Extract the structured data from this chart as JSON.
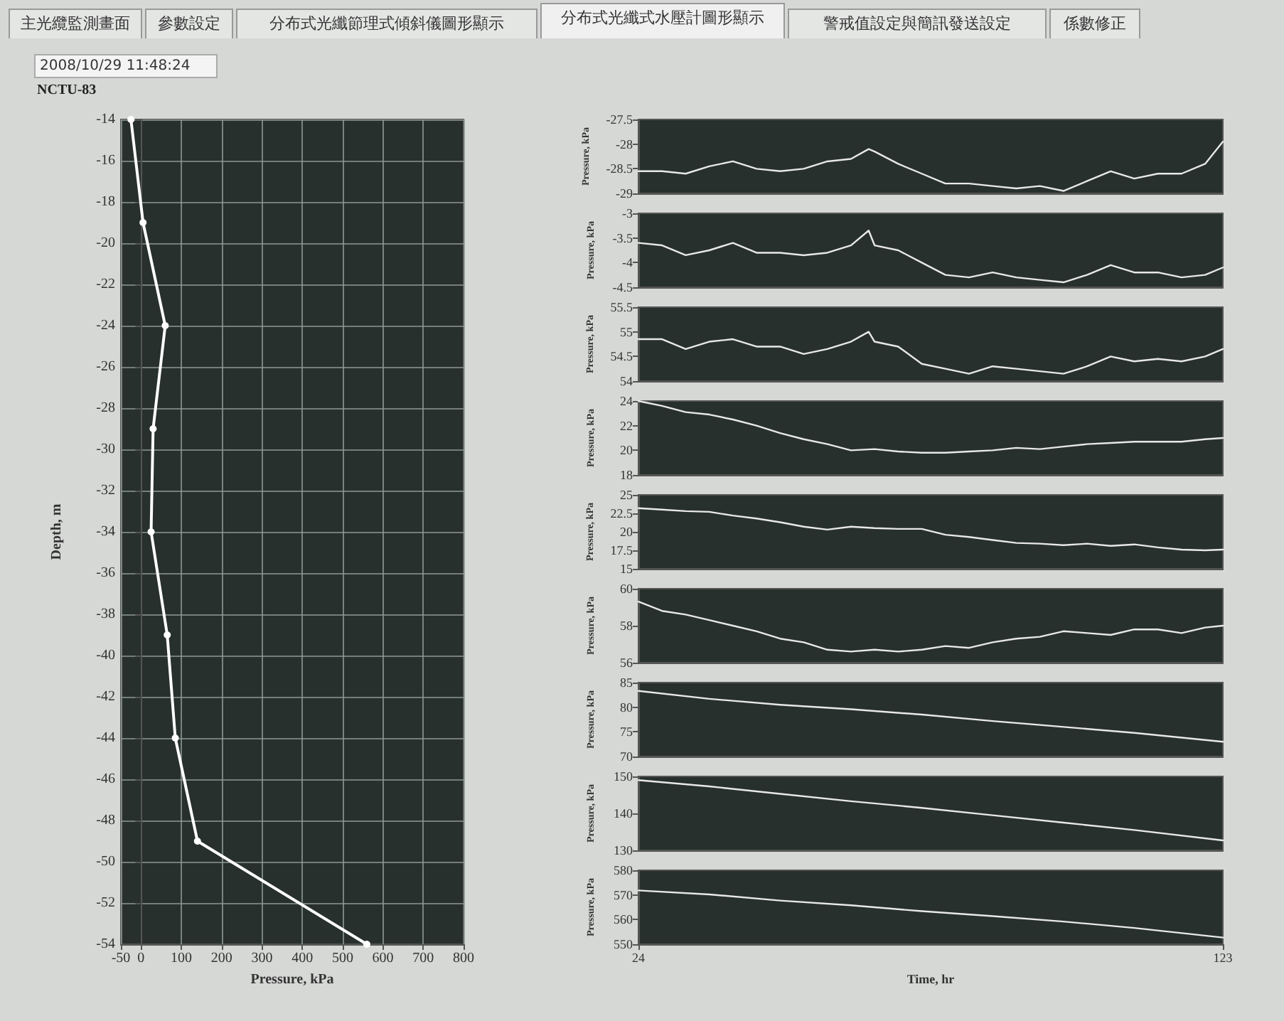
{
  "chart_data": [
    {
      "type": "line",
      "title": "NCTU-83",
      "annotations": [
        "主光纜監測畫面",
        "參數設定",
        "分布式光纖節理式傾斜儀圖形顯示",
        "分布式光纖式水壓計圖形顯示",
        "警戒值設定與簡訊發送設定",
        "係數修正",
        "2008/10/29 11:48:24"
      ],
      "xlabel": "Pressure, kPa",
      "ylabel": "Depth, m",
      "x": [
        -25,
        5,
        60,
        30,
        25,
        65,
        85,
        140,
        560
      ],
      "series": [
        {
          "color": "#ffffff",
          "values": [
            -14,
            -19,
            -24,
            -29,
            -34,
            -39,
            -44,
            -49,
            -54
          ]
        }
      ],
      "xlim": [
        -50,
        800
      ],
      "xticks": [
        -50,
        0,
        100,
        200,
        300,
        400,
        500,
        600,
        700,
        800
      ],
      "ylim": [
        -54,
        -14
      ],
      "yticks": [
        -54,
        -52,
        -50,
        -48,
        -46,
        -44,
        -42,
        -40,
        -38,
        -36,
        -34,
        -32,
        -30,
        -28,
        -26,
        -24,
        -22,
        -20,
        -18,
        -16,
        -14
      ],
      "grid": true,
      "marker": "circle"
    },
    {
      "type": "line",
      "ylabel": "Pressure, kPa",
      "x": [
        24,
        28,
        32,
        36,
        40,
        44,
        48,
        52,
        56,
        60,
        63,
        64,
        68,
        72,
        76,
        80,
        84,
        88,
        92,
        96,
        100,
        104,
        108,
        112,
        116,
        120,
        123
      ],
      "series": [
        {
          "color": "#e8e8e8",
          "values": [
            -28.55,
            -28.55,
            -28.6,
            -28.45,
            -28.35,
            -28.5,
            -28.55,
            -28.5,
            -28.35,
            -28.3,
            -28.1,
            -28.15,
            -28.4,
            -28.6,
            -28.8,
            -28.8,
            -28.85,
            -28.9,
            -28.85,
            -28.95,
            -28.75,
            -28.55,
            -28.7,
            -28.6,
            -28.6,
            -28.4,
            -27.95
          ]
        }
      ],
      "xlim": [
        24,
        123
      ],
      "ylim": [
        -29,
        -27.5
      ],
      "yticks": [
        -29,
        -28.5,
        -28,
        -27.5
      ],
      "tick_labels": "y"
    },
    {
      "type": "line",
      "ylabel": "Pressure, kPa",
      "x": [
        24,
        28,
        32,
        36,
        40,
        44,
        48,
        52,
        56,
        60,
        63,
        64,
        68,
        72,
        76,
        80,
        84,
        88,
        92,
        96,
        100,
        104,
        108,
        112,
        116,
        120,
        123
      ],
      "series": [
        {
          "color": "#e8e8e8",
          "values": [
            -3.6,
            -3.65,
            -3.85,
            -3.75,
            -3.6,
            -3.8,
            -3.8,
            -3.85,
            -3.8,
            -3.65,
            -3.35,
            -3.65,
            -3.75,
            -4.0,
            -4.25,
            -4.3,
            -4.2,
            -4.3,
            -4.35,
            -4.4,
            -4.25,
            -4.05,
            -4.2,
            -4.2,
            -4.3,
            -4.25,
            -4.1
          ]
        }
      ],
      "xlim": [
        24,
        123
      ],
      "ylim": [
        -4.5,
        -3
      ],
      "yticks": [
        -4.5,
        -4,
        -3.5,
        -3
      ],
      "tick_labels": "y"
    },
    {
      "type": "line",
      "ylabel": "Pressure, kPa",
      "x": [
        24,
        28,
        32,
        36,
        40,
        44,
        48,
        52,
        56,
        60,
        63,
        64,
        68,
        72,
        76,
        80,
        84,
        88,
        92,
        96,
        100,
        104,
        108,
        112,
        116,
        120,
        123
      ],
      "series": [
        {
          "color": "#e8e8e8",
          "values": [
            54.85,
            54.85,
            54.65,
            54.8,
            54.85,
            54.7,
            54.7,
            54.55,
            54.65,
            54.8,
            55.0,
            54.8,
            54.7,
            54.35,
            54.25,
            54.15,
            54.3,
            54.25,
            54.2,
            54.15,
            54.3,
            54.5,
            54.4,
            54.45,
            54.4,
            54.5,
            54.65
          ]
        }
      ],
      "xlim": [
        24,
        123
      ],
      "ylim": [
        54,
        55.5
      ],
      "yticks": [
        54,
        54.5,
        55,
        55.5
      ],
      "tick_labels": "y"
    },
    {
      "type": "line",
      "ylabel": "Pressure, kPa",
      "x": [
        24,
        28,
        32,
        36,
        40,
        44,
        48,
        52,
        56,
        60,
        64,
        68,
        72,
        76,
        80,
        84,
        88,
        92,
        96,
        100,
        104,
        108,
        112,
        116,
        120,
        123
      ],
      "series": [
        {
          "color": "#e8e8e8",
          "values": [
            24.0,
            23.6,
            23.1,
            22.9,
            22.5,
            22.0,
            21.4,
            20.9,
            20.5,
            20.0,
            20.1,
            19.9,
            19.8,
            19.8,
            19.9,
            20.0,
            20.2,
            20.1,
            20.3,
            20.5,
            20.6,
            20.7,
            20.7,
            20.7,
            20.9,
            21.0
          ]
        }
      ],
      "xlim": [
        24,
        123
      ],
      "ylim": [
        18,
        24
      ],
      "yticks": [
        18,
        20,
        22,
        24
      ],
      "tick_labels": "y"
    },
    {
      "type": "line",
      "ylabel": "Pressure, kPa",
      "x": [
        24,
        28,
        32,
        36,
        40,
        44,
        48,
        52,
        56,
        60,
        64,
        68,
        72,
        76,
        80,
        84,
        88,
        92,
        96,
        100,
        104,
        108,
        112,
        116,
        120,
        123
      ],
      "series": [
        {
          "color": "#e8e8e8",
          "values": [
            23.2,
            23.0,
            22.8,
            22.7,
            22.2,
            21.8,
            21.3,
            20.7,
            20.3,
            20.7,
            20.5,
            20.4,
            20.4,
            19.6,
            19.3,
            18.9,
            18.5,
            18.4,
            18.2,
            18.4,
            18.1,
            18.3,
            17.9,
            17.6,
            17.5,
            17.6
          ]
        }
      ],
      "xlim": [
        24,
        123
      ],
      "ylim": [
        15,
        25
      ],
      "yticks": [
        15,
        17.5,
        20,
        22.5,
        25
      ],
      "tick_labels": "y"
    },
    {
      "type": "line",
      "ylabel": "Pressure, kPa",
      "x": [
        24,
        28,
        32,
        36,
        40,
        44,
        48,
        52,
        56,
        60,
        64,
        68,
        72,
        76,
        80,
        84,
        88,
        92,
        96,
        100,
        104,
        108,
        112,
        116,
        120,
        123
      ],
      "series": [
        {
          "color": "#e8e8e8",
          "values": [
            59.3,
            58.8,
            58.6,
            58.3,
            58.0,
            57.7,
            57.3,
            57.1,
            56.7,
            56.6,
            56.7,
            56.6,
            56.7,
            56.9,
            56.8,
            57.1,
            57.3,
            57.4,
            57.7,
            57.6,
            57.5,
            57.8,
            57.8,
            57.6,
            57.9,
            58.0
          ]
        }
      ],
      "xlim": [
        24,
        123
      ],
      "ylim": [
        56,
        60
      ],
      "yticks": [
        56,
        58,
        60
      ],
      "tick_labels": "y"
    },
    {
      "type": "line",
      "ylabel": "Pressure, kPa",
      "x": [
        24,
        36,
        48,
        60,
        72,
        84,
        96,
        108,
        123
      ],
      "series": [
        {
          "color": "#e8e8e8",
          "values": [
            83.3,
            81.7,
            80.5,
            79.6,
            78.5,
            77.2,
            76.0,
            74.8,
            73.0
          ]
        }
      ],
      "xlim": [
        24,
        123
      ],
      "ylim": [
        70,
        85
      ],
      "yticks": [
        70,
        75,
        80,
        85
      ],
      "tick_labels": "y"
    },
    {
      "type": "line",
      "ylabel": "Pressure, kPa",
      "x": [
        24,
        36,
        48,
        60,
        72,
        84,
        96,
        108,
        123
      ],
      "series": [
        {
          "color": "#e8e8e8",
          "values": [
            149.0,
            147.3,
            145.3,
            143.3,
            141.5,
            139.5,
            137.5,
            135.5,
            132.7
          ]
        }
      ],
      "xlim": [
        24,
        123
      ],
      "ylim": [
        130,
        150
      ],
      "yticks": [
        130,
        140,
        150
      ],
      "tick_labels": "y"
    },
    {
      "type": "line",
      "ylabel": "Pressure, kPa",
      "xlabel": "Time, hr",
      "x": [
        24,
        36,
        48,
        60,
        72,
        84,
        96,
        108,
        123
      ],
      "series": [
        {
          "color": "#e8e8e8",
          "values": [
            571.8,
            570.2,
            567.7,
            565.8,
            563.4,
            561.4,
            559.2,
            556.6,
            552.7
          ]
        }
      ],
      "xlim": [
        24,
        123
      ],
      "xticks": [
        24,
        123
      ],
      "ylim": [
        550,
        580
      ],
      "yticks": [
        550,
        560,
        570,
        580
      ]
    }
  ]
}
